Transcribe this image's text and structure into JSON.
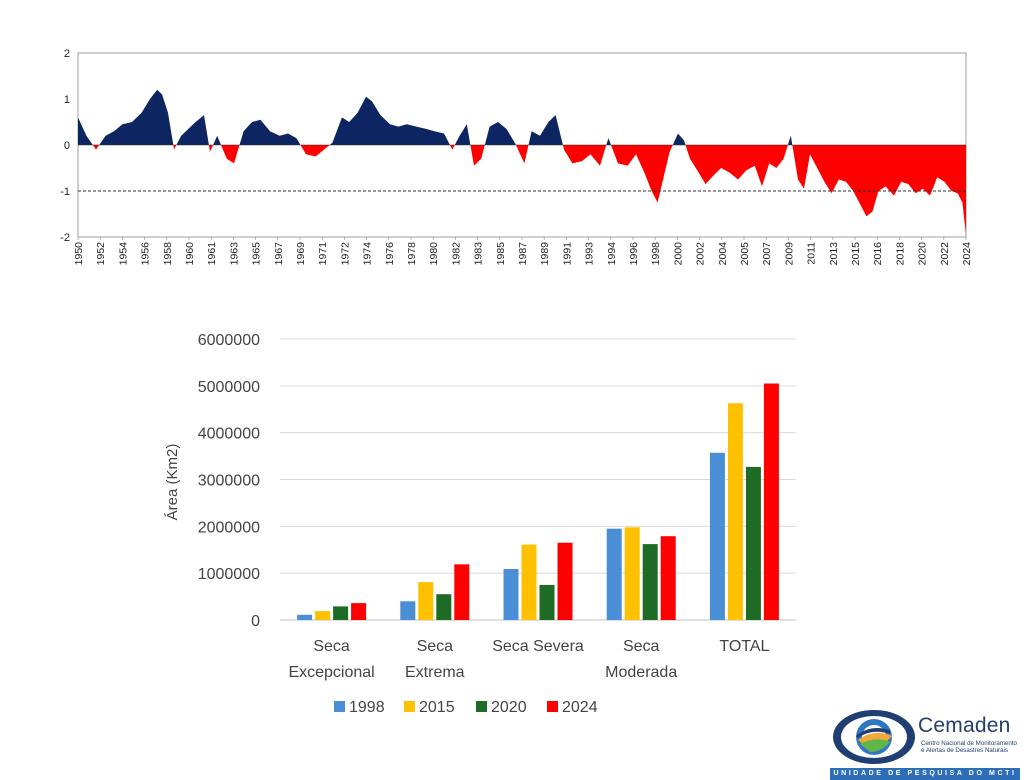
{
  "chart_data": [
    {
      "type": "area",
      "title": "",
      "ylim": [
        -2,
        2
      ],
      "yticks": [
        "2",
        "1",
        "0",
        "-1",
        "-2"
      ],
      "reference_line": -1,
      "colors": {
        "positive": "#0d2560",
        "negative": "#ff0000"
      },
      "xlabels": [
        "1950",
        "1952",
        "1954",
        "1956",
        "1958",
        "1960",
        "1961",
        "1963",
        "1965",
        "1967",
        "1969",
        "1971",
        "1972",
        "1974",
        "1976",
        "1978",
        "1980",
        "1982",
        "1983",
        "1985",
        "1987",
        "1989",
        "1991",
        "1993",
        "1994",
        "1996",
        "1998",
        "2000",
        "2002",
        "2004",
        "2005",
        "2007",
        "2009",
        "2011",
        "2013",
        "2015",
        "2016",
        "2018",
        "2020",
        "2022",
        "2024"
      ],
      "x": [
        1950,
        1950.7,
        1951.5,
        1952.3,
        1953,
        1953.7,
        1954.5,
        1955.3,
        1956,
        1956.6,
        1957,
        1957.5,
        1958,
        1958.6,
        1959.2,
        1959.8,
        1960.5,
        1961,
        1961.6,
        1962.4,
        1963,
        1963.8,
        1964.5,
        1965.2,
        1966,
        1966.8,
        1967.5,
        1968.2,
        1969,
        1969.8,
        1970.5,
        1971.2,
        1972,
        1972.6,
        1973.3,
        1974,
        1974.5,
        1975.2,
        1976,
        1976.7,
        1977.4,
        1978.2,
        1979,
        1979.7,
        1980.5,
        1981.2,
        1981.8,
        1982.4,
        1983,
        1983.6,
        1984.3,
        1985,
        1985.7,
        1986.4,
        1987.2,
        1987.8,
        1988.5,
        1989.2,
        1989.8,
        1990.5,
        1991.2,
        1992,
        1992.7,
        1993.5,
        1994.2,
        1995,
        1995.8,
        1996.5,
        1997.2,
        1997.8,
        1998.3,
        1998.8,
        1999.3,
        2000,
        2000.5,
        2001,
        2001.6,
        2002.3,
        2003,
        2003.6,
        2004.3,
        2005,
        2005.7,
        2006.4,
        2007,
        2007.6,
        2008.2,
        2008.8,
        2009.4,
        2010,
        2010.5,
        2011,
        2011.6,
        2012.2,
        2012.8,
        2013.4,
        2014,
        2014.6,
        2015.2,
        2015.7,
        2016.2,
        2016.7,
        2017.3,
        2018,
        2018.6,
        2019.2,
        2019.8,
        2020.4,
        2021,
        2021.6,
        2022.2,
        2022.8,
        2023.3,
        2023.7,
        2024
      ],
      "values": [
        0.6,
        0.2,
        -0.1,
        0.2,
        0.3,
        0.45,
        0.5,
        0.7,
        1.0,
        1.2,
        1.1,
        0.7,
        -0.1,
        0.2,
        0.35,
        0.5,
        0.65,
        -0.15,
        0.2,
        -0.3,
        -0.4,
        0.3,
        0.5,
        0.55,
        0.3,
        0.2,
        0.25,
        0.15,
        -0.2,
        -0.25,
        -0.1,
        0.05,
        0.6,
        0.5,
        0.7,
        1.05,
        0.95,
        0.65,
        0.45,
        0.4,
        0.45,
        0.4,
        0.35,
        0.3,
        0.25,
        -0.1,
        0.2,
        0.45,
        -0.45,
        -0.3,
        0.4,
        0.5,
        0.35,
        0.05,
        -0.4,
        0.3,
        0.2,
        0.5,
        0.65,
        -0.1,
        -0.4,
        -0.35,
        -0.2,
        -0.45,
        0.15,
        -0.4,
        -0.45,
        -0.2,
        -0.6,
        -1.0,
        -1.25,
        -0.7,
        -0.15,
        0.25,
        0.1,
        -0.3,
        -0.55,
        -0.85,
        -0.65,
        -0.5,
        -0.6,
        -0.75,
        -0.55,
        -0.45,
        -0.9,
        -0.4,
        -0.5,
        -0.3,
        0.2,
        -0.75,
        -0.95,
        -0.2,
        -0.5,
        -0.8,
        -1.05,
        -0.75,
        -0.8,
        -1.0,
        -1.3,
        -1.55,
        -1.45,
        -1.0,
        -0.9,
        -1.1,
        -0.8,
        -0.85,
        -1.05,
        -0.95,
        -1.1,
        -0.7,
        -0.8,
        -1.0,
        -1.05,
        -1.25,
        -1.95
      ]
    },
    {
      "type": "bar",
      "title": "",
      "ylabel": "Área (Km2)",
      "ylim": [
        0,
        6000000
      ],
      "yticks": [
        "0",
        "1000000",
        "2000000",
        "3000000",
        "4000000",
        "5000000",
        "6000000"
      ],
      "categories": [
        [
          "Seca",
          "Excepcional"
        ],
        [
          "Seca",
          "Extrema"
        ],
        [
          "Seca Severa"
        ],
        [
          "Seca",
          "Moderada"
        ],
        [
          "TOTAL"
        ]
      ],
      "series": [
        {
          "name": "1998",
          "color": "#4a8fd6",
          "values": [
            110000,
            400000,
            1090000,
            1950000,
            3570000
          ]
        },
        {
          "name": "2015",
          "color": "#ffc000",
          "values": [
            190000,
            810000,
            1610000,
            1980000,
            4630000
          ]
        },
        {
          "name": "2020",
          "color": "#1e6b25",
          "values": [
            290000,
            550000,
            750000,
            1620000,
            3270000
          ]
        },
        {
          "name": "2024",
          "color": "#ff0000",
          "values": [
            360000,
            1190000,
            1650000,
            1790000,
            5050000
          ]
        }
      ]
    }
  ],
  "logo": {
    "name": "Cemaden",
    "subtitle_line1": "Centro Nacional de Monitoramento",
    "subtitle_line2": "e Alertas de Desastres Naturais",
    "band": "UNIDADE DE PESQUISA DO MCTI"
  }
}
